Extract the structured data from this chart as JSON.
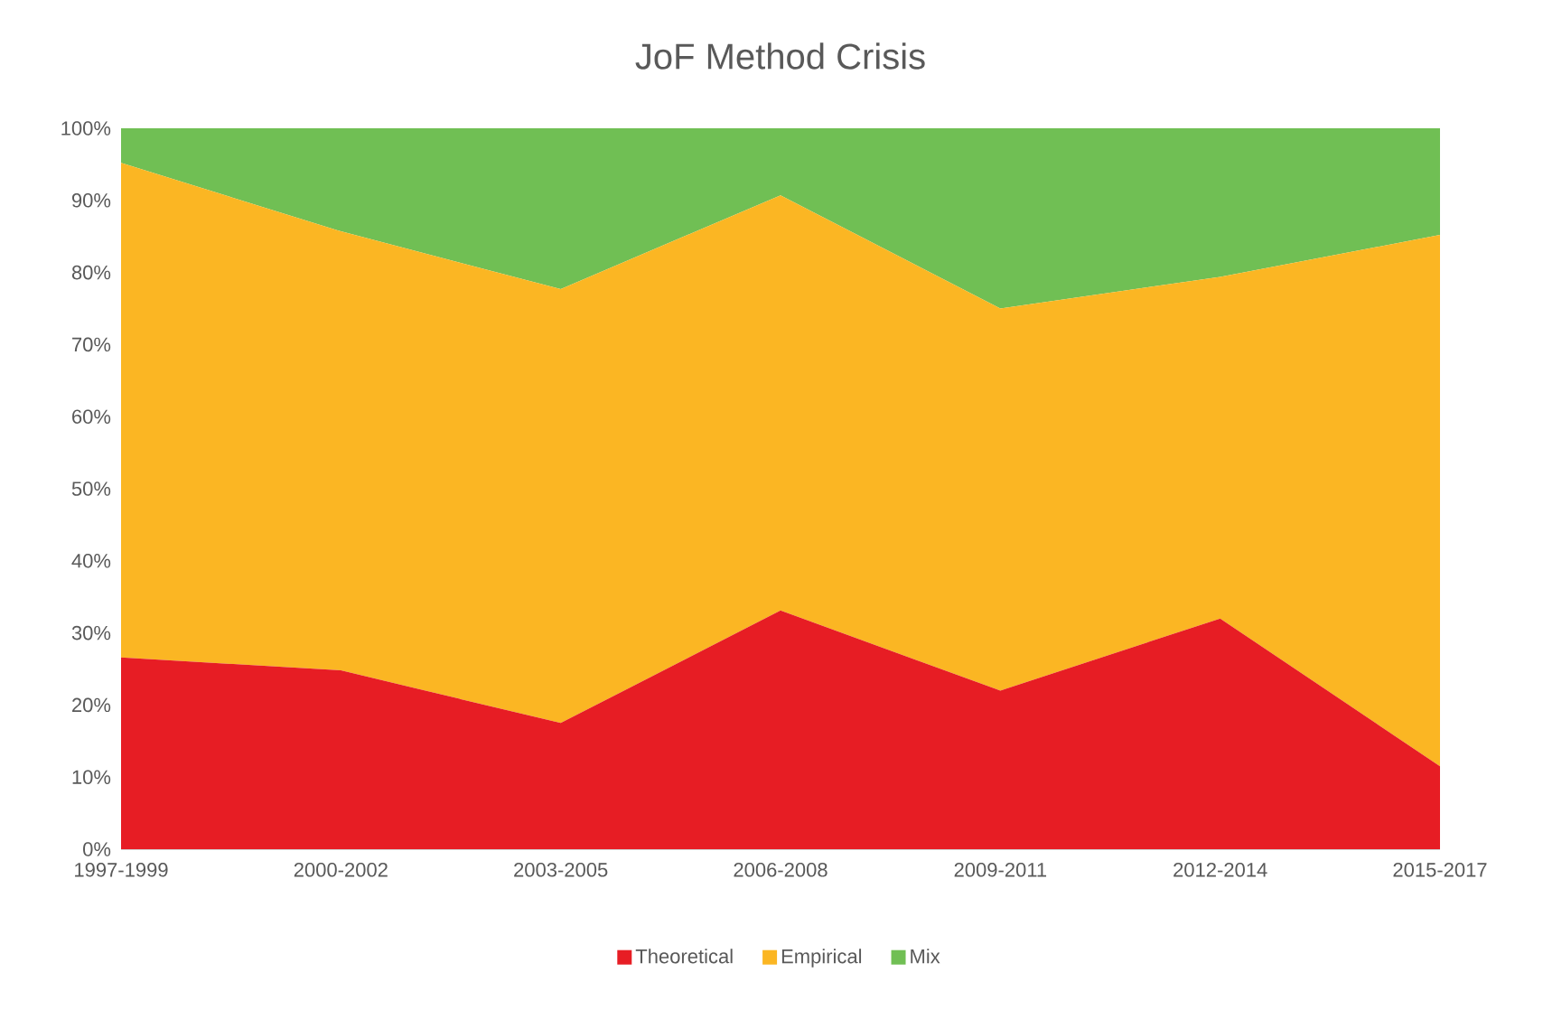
{
  "chart_data": {
    "type": "area",
    "title": "JoF Method Crisis",
    "stacked": true,
    "legend": "bottom",
    "categories": [
      "1997-1999",
      "2000-2002",
      "2003-2005",
      "2006-2008",
      "2009-2011",
      "2012-2014",
      "2015-2017"
    ],
    "ylim": [
      0,
      100
    ],
    "yticks": [
      {
        "value": 0,
        "label": "0%"
      },
      {
        "value": 10,
        "label": "10%"
      },
      {
        "value": 20,
        "label": "20%"
      },
      {
        "value": 30,
        "label": "30%"
      },
      {
        "value": 40,
        "label": "40%"
      },
      {
        "value": 50,
        "label": "50%"
      },
      {
        "value": 60,
        "label": "60%"
      },
      {
        "value": 70,
        "label": "70%"
      },
      {
        "value": 80,
        "label": "80%"
      },
      {
        "value": 90,
        "label": "90%"
      },
      {
        "value": 100,
        "label": "100%"
      }
    ],
    "series": [
      {
        "name": "Theoretical",
        "color": "#e71d24",
        "values": [
          26.6,
          24.8,
          17.5,
          33.1,
          22,
          32,
          11.5
        ]
      },
      {
        "name": "Empirical",
        "color": "#fbb623",
        "values": [
          68.6,
          60.9,
          60.2,
          57.6,
          53,
          47.4,
          73.7
        ]
      },
      {
        "name": "Mix",
        "color": "#70bf54",
        "values": [
          4.8,
          14.3,
          22.3,
          9.3,
          25,
          20.6,
          14.8
        ]
      }
    ]
  }
}
